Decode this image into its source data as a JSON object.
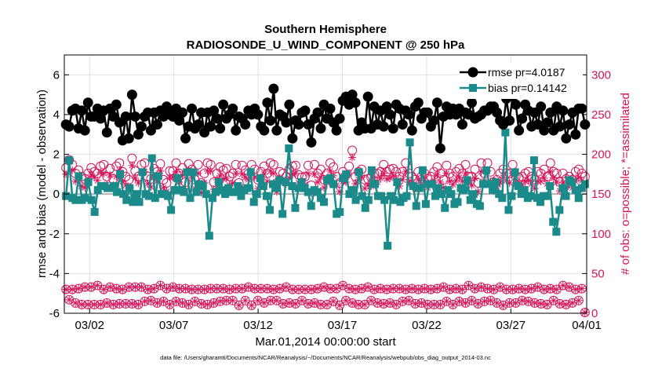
{
  "chart_data": {
    "type": "line",
    "title": "Southern Hemisphere",
    "subtitle": "RADIOSONDE_U_WIND_COMPONENT @ 250 hPa",
    "xlabel": "Mar.01,2014 00:00:00 start",
    "ylabel": "rmse and bias (model - observation)",
    "ylabel_right": "# of obs: o=possible; *=assimilated",
    "xlim": [
      0,
      31
    ],
    "ylim": [
      -6,
      7
    ],
    "ylim_right": [
      0,
      325
    ],
    "x_ticks": [
      1.5,
      6.5,
      11.5,
      16.5,
      21.5,
      26.5,
      31.5
    ],
    "x_tick_labels": [
      "03/02",
      "03/07",
      "03/12",
      "03/17",
      "03/22",
      "03/27",
      "04/01"
    ],
    "y_ticks": [
      -6,
      -4,
      -2,
      0,
      2,
      4,
      6
    ],
    "y_tick_labels": [
      "-6",
      "-4",
      "-2",
      "0",
      "2",
      "4",
      "6"
    ],
    "y_ticks_right": [
      0,
      50,
      100,
      150,
      200,
      250,
      300
    ],
    "y_tick_labels_right": [
      "0",
      "50",
      "100",
      "150",
      "200",
      "250",
      "300"
    ],
    "grid": true,
    "legend_position": "top-right",
    "zero_line": 0,
    "colors": {
      "rmse": "#000000",
      "bias": "#1a8a8a",
      "obs": "#d4145a",
      "zero": "#b3b3b3"
    },
    "footnote": "data file: /Users/gharamti/Documents/NCAR/Reanalysis/~/Documents/NCAR/Reanalysis/webpub/obs_diag_output_2014-03.nc",
    "series": [
      {
        "name": "rmse pr=4.0187",
        "values": [
          3.5,
          3.4,
          4.2,
          4.3,
          3.3,
          4.2,
          3.2,
          4.6,
          3.9,
          3.9,
          4.3,
          3.8,
          4.2,
          3.1,
          4.3,
          3.9,
          4.5,
          3.6,
          2.7,
          3.9,
          2.8,
          5.0,
          3.9,
          3.0,
          3.4,
          3.9,
          4.1,
          3.2,
          4.1,
          3.5,
          4.2,
          3.9,
          4.4,
          4.0,
          3.9,
          4.3,
          3.7,
          4.1,
          2.8,
          3.4,
          4.3,
          3.3,
          3.5,
          4.1,
          3.1,
          4.1,
          3.4,
          4.2,
          3.8,
          3.3,
          4.5,
          3.8,
          4.0,
          4.3,
          3.2,
          3.9,
          3.8,
          3.5,
          4.2,
          4.0,
          4.3,
          4.0,
          3.4,
          3.2,
          4.6,
          3.7,
          5.3,
          3.2,
          4.0,
          3.9,
          3.6,
          4.5,
          2.8,
          3.7,
          3.5,
          4.1,
          4.2,
          3.5,
          2.6,
          3.8,
          4.1,
          3.3,
          4.5,
          3.8,
          4.3,
          3.6,
          3.2,
          3.8,
          4.7,
          4.9,
          4.5,
          5.0,
          4.6,
          3.2,
          3.6,
          3.3,
          4.9,
          3.3,
          4.4,
          3.5,
          4.2,
          3.4,
          4.4,
          4.0,
          3.3,
          4.5,
          4.3,
          3.5,
          4.2,
          4.0,
          3.2,
          4.4,
          4.6,
          3.8,
          4.1,
          4.1,
          3.4,
          3.7,
          4.6,
          2.3,
          3.9,
          4.4,
          4.0,
          4.3,
          4.0,
          4.3,
          3.5,
          4.1,
          4.0,
          4.6,
          3.8,
          3.9,
          4.0,
          4.2,
          4.2,
          4.4,
          4.4,
          4.1,
          3.7,
          3.5,
          4.8,
          3.7,
          4.9,
          4.5,
          3.2,
          3.8,
          4.5,
          4.2,
          3.4,
          4.1,
          3.5,
          4.4,
          3.2,
          3.6,
          4.1,
          3.2,
          4.4,
          3.4,
          4.2,
          2.8,
          3.5,
          4.1,
          3.0,
          4.3,
          4.3,
          3.5
        ]
      },
      {
        "name": "bias pr=0.14142",
        "values": [
          -0.1,
          1.7,
          -0.2,
          -0.3,
          0.9,
          -0.3,
          -0.2,
          0.6,
          -0.3,
          -0.9,
          0.2,
          0.4,
          0.4,
          0.3,
          0.3,
          0.4,
          0.1,
          1.0,
          0.0,
          -0.3,
          0.3,
          -0.4,
          0.0,
          -0.4,
          1.1,
          0.0,
          -0.1,
          1.8,
          -0.2,
          0.9,
          0.0,
          0.0,
          -0.1,
          -0.8,
          0.2,
          0.8,
          0.2,
          0.1,
          1.1,
          -0.2,
          1.1,
          0.1,
          0.5,
          0.4,
          0.0,
          -2.1,
          -0.2,
          0.1,
          0.6,
          0.2,
          0.0,
          0.3,
          0.1,
          0.1,
          0.4,
          -0.1,
          0.2,
          0.3,
          1.1,
          -0.4,
          0.0,
          0.8,
          0.4,
          -0.1,
          -0.8,
          0.5,
          0.3,
          0.7,
          -1.0,
          0.6,
          2.3,
          0.4,
          -0.7,
          0.3,
          0.6,
          0.3,
          0.1,
          -0.6,
          0.2,
          0.1,
          -0.2,
          -0.4,
          0.7,
          0.8,
          0.5,
          -1.0,
          -0.9,
          0.8,
          1.0,
          0.0,
          0.2,
          -0.3,
          1.1,
          -0.1,
          -0.7,
          -0.3,
          1.2,
          0.5,
          -0.1,
          -0.1,
          -0.3,
          -2.6,
          -0.1,
          -0.3,
          0.6,
          -0.4,
          -0.2,
          -0.1,
          2.6,
          0.4,
          -0.6,
          0.3,
          1.2,
          -0.5,
          0.5,
          0.5,
          -0.1,
          0.3,
          0.0,
          -0.7,
          0.2,
          0.0,
          -0.5,
          -0.4,
          0.3,
          0.2,
          0.7,
          -0.3,
          0.0,
          -0.5,
          -0.6,
          0.5,
          1.2,
          0.5,
          0.2,
          0.6,
          0.0,
          -0.2,
          3.1,
          -0.8,
          -0.1,
          1.1,
          0.4,
          0.0,
          0.2,
          -0.2,
          -0.1,
          1.7,
          -0.2,
          -0.4,
          -0.1,
          -0.1,
          0.4,
          -1.4,
          -1.9,
          -0.8,
          0.3,
          -0.1,
          0.7,
          0.6,
          0.2,
          -0.2,
          0.3,
          0.5
        ]
      },
      {
        "name": "obs possible",
        "values": [
          30,
          17,
          30,
          13,
          31,
          11,
          33,
          11,
          33,
          11,
          35,
          11,
          30,
          13,
          33,
          11,
          31,
          12,
          30,
          12,
          33,
          12,
          33,
          11,
          33,
          15,
          30,
          16,
          31,
          13,
          35,
          15,
          31,
          11,
          33,
          15,
          31,
          13,
          31,
          11,
          30,
          15,
          30,
          12,
          30,
          11,
          31,
          13,
          31,
          15,
          31,
          16,
          30,
          16,
          31,
          10,
          31,
          16,
          33,
          10,
          31,
          16,
          31,
          13,
          31,
          16,
          30,
          16,
          31,
          12,
          33,
          13,
          30,
          12,
          30,
          16,
          30,
          12,
          30,
          13,
          31,
          11,
          33,
          11,
          31,
          15,
          31,
          10,
          35,
          16,
          31,
          13,
          30,
          11,
          31,
          11,
          33,
          16,
          30,
          13,
          31,
          12,
          30,
          13,
          31,
          11,
          31,
          15,
          30,
          16,
          31,
          12,
          30,
          13,
          31,
          11,
          30,
          11,
          31,
          11,
          33,
          15,
          30,
          11,
          31,
          15,
          30,
          13,
          35,
          16,
          31,
          12,
          33,
          15,
          31,
          16,
          30,
          13,
          33,
          10,
          30,
          13,
          30,
          13,
          31,
          16,
          30,
          15,
          31,
          13,
          33,
          12,
          30,
          11,
          31,
          16,
          30,
          12,
          35,
          11,
          33,
          13,
          30,
          16,
          31,
          1
        ]
      },
      {
        "name": "obs assimilated",
        "values": [
          30,
          17,
          30,
          13,
          31,
          11,
          33,
          11,
          33,
          11,
          35,
          11,
          30,
          13,
          33,
          11,
          31,
          12,
          30,
          12,
          33,
          12,
          33,
          11,
          33,
          15,
          30,
          16,
          31,
          13,
          35,
          15,
          31,
          11,
          33,
          15,
          31,
          13,
          31,
          11,
          30,
          15,
          30,
          12,
          30,
          11,
          31,
          13,
          31,
          15,
          31,
          16,
          30,
          16,
          31,
          10,
          31,
          16,
          33,
          10,
          31,
          16,
          31,
          13,
          31,
          16,
          30,
          16,
          31,
          12,
          33,
          13,
          30,
          12,
          30,
          16,
          30,
          12,
          30,
          13,
          31,
          11,
          33,
          11,
          31,
          15,
          31,
          10,
          35,
          16,
          31,
          13,
          30,
          11,
          31,
          11,
          33,
          16,
          30,
          13,
          31,
          12,
          30,
          13,
          31,
          11,
          31,
          15,
          30,
          16,
          31,
          12,
          30,
          13,
          31,
          11,
          30,
          11,
          31,
          11,
          33,
          15,
          30,
          11,
          31,
          15,
          30,
          13,
          35,
          16,
          31,
          12,
          33,
          15,
          31,
          16,
          30,
          13,
          33,
          10,
          30,
          13,
          30,
          13,
          31,
          16,
          30,
          15,
          31,
          13,
          33,
          12,
          30,
          11,
          31,
          16,
          30,
          12,
          35,
          11,
          33,
          13,
          30,
          16,
          31,
          1
        ]
      }
    ],
    "obs_upper_possible": [
      183,
      193,
      187,
      176,
      180,
      172,
      169,
      176,
      183,
      178,
      176,
      185,
      187,
      172,
      182,
      169,
      185,
      189,
      178,
      172,
      168,
      195,
      179,
      172,
      187,
      189,
      172,
      169,
      182,
      178,
      188,
      168,
      164,
      179,
      179,
      189,
      176,
      183,
      165,
      188,
      181,
      168,
      187,
      164,
      176,
      189,
      187,
      165,
      176,
      184,
      180,
      182,
      172,
      176,
      187,
      164,
      186,
      180,
      176,
      187,
      181,
      168,
      178,
      185,
      176,
      189,
      187,
      164,
      178,
      176,
      172,
      181,
      185,
      186,
      174,
      171,
      172,
      186,
      161,
      187,
      176,
      181,
      168,
      176,
      189,
      184,
      172,
      164,
      178,
      174,
      185,
      205,
      172,
      178,
      181,
      168,
      169,
      171,
      176,
      176,
      178,
      187,
      178,
      181,
      182,
      178,
      172,
      178,
      189,
      176,
      172,
      168,
      178,
      172,
      176,
      169,
      172,
      178,
      184,
      176,
      168,
      186,
      176,
      172,
      178,
      182,
      176,
      187,
      172,
      172,
      181,
      164,
      189,
      176,
      189,
      178,
      165,
      168,
      176,
      181,
      176,
      176,
      187,
      172,
      171,
      172,
      176,
      178,
      172,
      168,
      178,
      176,
      181,
      172,
      189,
      178,
      176,
      165,
      176,
      169,
      172,
      168,
      178,
      181,
      176,
      172
    ],
    "obs_upper_assimilated": [
      175,
      190,
      180,
      166,
      171,
      160,
      158,
      166,
      174,
      171,
      167,
      177,
      176,
      162,
      174,
      161,
      172,
      180,
      166,
      161,
      157,
      186,
      170,
      164,
      178,
      178,
      163,
      159,
      171,
      166,
      179,
      158,
      153,
      171,
      171,
      178,
      165,
      174,
      155,
      180,
      173,
      157,
      176,
      152,
      164,
      179,
      179,
      156,
      168,
      173,
      169,
      170,
      161,
      164,
      176,
      153,
      175,
      171,
      168,
      177,
      171,
      157,
      168,
      175,
      166,
      179,
      176,
      153,
      170,
      165,
      163,
      170,
      175,
      176,
      164,
      160,
      162,
      176,
      151,
      175,
      165,
      171,
      158,
      164,
      179,
      173,
      161,
      153,
      166,
      165,
      176,
      196,
      163,
      168,
      171,
      157,
      161,
      160,
      165,
      165,
      170,
      176,
      169,
      170,
      173,
      169,
      160,
      168,
      178,
      165,
      163,
      157,
      168,
      161,
      167,
      158,
      164,
      167,
      174,
      165,
      158,
      176,
      166,
      162,
      167,
      171,
      166,
      176,
      164,
      161,
      170,
      153,
      178,
      166,
      179,
      166,
      154,
      159,
      164,
      171,
      167,
      164,
      176,
      164,
      162,
      161,
      166,
      167,
      163,
      157,
      166,
      166,
      170,
      163,
      178,
      170,
      165,
      154,
      164,
      159,
      162,
      158,
      166,
      171,
      167,
      161
    ]
  }
}
